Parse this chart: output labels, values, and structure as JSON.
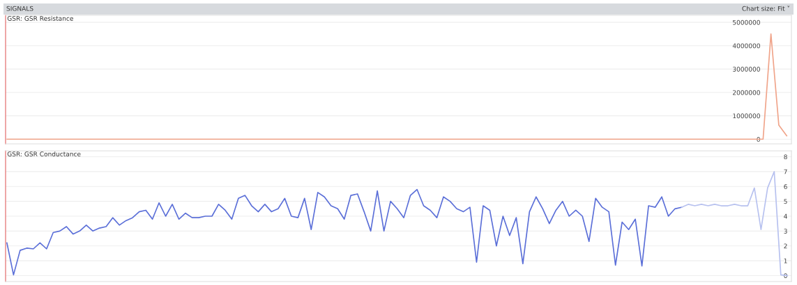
{
  "chart_data": [
    {
      "type": "line",
      "title": "GSR: GSR Resistance",
      "annotations": [
        "SIGNALS",
        "Chart size: Fit ˅"
      ],
      "categories": [
        null,
        null,
        null,
        null,
        null,
        null,
        null,
        null,
        null,
        null,
        null,
        null,
        null,
        null,
        null,
        null,
        null,
        null,
        null,
        null,
        null,
        null,
        null,
        null,
        null,
        null,
        null,
        null,
        null,
        null,
        null,
        null,
        null,
        null,
        null,
        null,
        null,
        null,
        null,
        null,
        null,
        null,
        null,
        null,
        null,
        null,
        null,
        null,
        null,
        null,
        null,
        null,
        null,
        null,
        null,
        null,
        null,
        null,
        null,
        null,
        null,
        null,
        null,
        null,
        null,
        null,
        null,
        null,
        null,
        null,
        null,
        null,
        null,
        null,
        null,
        null,
        null,
        null,
        null,
        null,
        null,
        null,
        null,
        null,
        null,
        null,
        null,
        null,
        null,
        null,
        null,
        null,
        null,
        null,
        null,
        null,
        null,
        null,
        null,
        null
      ],
      "series": [
        {
          "color": "#f0a48a",
          "values": [
            0,
            0,
            0,
            0,
            0,
            0,
            0,
            0,
            0,
            0,
            0,
            0,
            0,
            0,
            0,
            0,
            0,
            0,
            0,
            0,
            0,
            0,
            0,
            0,
            0,
            0,
            0,
            0,
            0,
            0,
            0,
            0,
            0,
            0,
            0,
            0,
            0,
            0,
            0,
            0,
            0,
            0,
            0,
            0,
            0,
            0,
            0,
            0,
            0,
            0,
            0,
            0,
            0,
            0,
            0,
            0,
            0,
            0,
            0,
            0,
            0,
            0,
            0,
            0,
            0,
            0,
            0,
            0,
            0,
            0,
            0,
            0,
            0,
            0,
            0,
            0,
            0,
            0,
            0,
            0,
            0,
            0,
            0,
            0,
            0,
            0,
            0,
            0,
            0,
            0,
            0,
            0,
            0,
            0,
            0,
            0,
            0,
            4500000,
            600000,
            150000
          ]
        }
      ],
      "ylim": [
        -200000,
        5300000
      ],
      "yticks": [
        0,
        1000000,
        2000000,
        3000000,
        4000000,
        5000000
      ],
      "grid": "y",
      "tick_labels": "y"
    },
    {
      "type": "line",
      "title": "GSR: GSR Conductance",
      "categories": [
        null,
        null,
        null,
        null,
        null,
        null,
        null,
        null,
        null,
        null,
        null,
        null,
        null,
        null,
        null,
        null,
        null,
        null,
        null,
        null,
        null,
        null,
        null,
        null,
        null,
        null,
        null,
        null,
        null,
        null,
        null,
        null,
        null,
        null,
        null,
        null,
        null,
        null,
        null,
        null,
        null,
        null,
        null,
        null,
        null,
        null,
        null,
        null,
        null,
        null,
        null,
        null,
        null,
        null,
        null,
        null,
        null,
        null,
        null,
        null,
        null,
        null,
        null,
        null,
        null,
        null,
        null,
        null,
        null,
        null,
        null,
        null,
        null,
        null,
        null,
        null,
        null,
        null,
        null,
        null,
        null,
        null,
        null,
        null,
        null,
        null,
        null,
        null,
        null,
        null,
        null,
        null,
        null,
        null,
        null,
        null,
        null,
        null,
        null,
        null,
        null,
        null,
        null,
        null,
        null,
        null,
        null,
        null,
        null,
        null,
        null,
        null,
        null,
        null,
        null,
        null,
        null,
        null,
        null
      ],
      "series": [
        {
          "color": "#5b6fd8",
          "values": [
            2.2,
            0.05,
            1.7,
            1.85,
            1.8,
            2.2,
            1.8,
            2.9,
            3.0,
            3.3,
            2.8,
            3.0,
            3.4,
            3.0,
            3.2,
            3.3,
            3.9,
            3.4,
            3.7,
            3.9,
            4.3,
            4.4,
            3.8,
            4.9,
            4.0,
            4.8,
            3.8,
            4.2,
            3.9,
            3.9,
            4.0,
            4.0,
            4.8,
            4.4,
            3.8,
            5.2,
            5.4,
            4.7,
            4.3,
            4.8,
            4.3,
            4.5,
            5.2,
            4.0,
            3.9,
            5.2,
            3.1,
            5.6,
            5.3,
            4.7,
            4.5,
            3.8,
            5.4,
            5.5,
            4.3,
            3.0,
            5.7,
            3.0,
            5.0,
            4.5,
            3.9,
            5.4,
            5.8,
            4.7,
            4.4,
            3.9,
            5.3,
            5.0,
            4.5,
            4.3,
            4.6,
            0.9,
            4.7,
            4.4,
            2.0,
            4.0,
            2.7,
            3.9,
            0.8,
            4.3,
            5.3,
            4.5,
            3.5,
            4.4,
            5.0,
            4.0,
            4.4,
            4.0,
            2.3,
            5.2,
            4.6,
            4.3,
            0.7,
            3.6,
            3.1,
            3.8,
            0.65,
            4.7,
            4.6,
            5.3,
            4.0,
            4.5,
            4.6,
            null,
            null,
            null,
            null,
            null,
            null,
            null,
            null,
            null,
            null,
            null,
            null,
            null,
            null,
            null,
            null
          ]
        },
        {
          "color": "#b7c1ef",
          "values": [
            null,
            null,
            null,
            null,
            null,
            null,
            null,
            null,
            null,
            null,
            null,
            null,
            null,
            null,
            null,
            null,
            null,
            null,
            null,
            null,
            null,
            null,
            null,
            null,
            null,
            null,
            null,
            null,
            null,
            null,
            null,
            null,
            null,
            null,
            null,
            null,
            null,
            null,
            null,
            null,
            null,
            null,
            null,
            null,
            null,
            null,
            null,
            null,
            null,
            null,
            null,
            null,
            null,
            null,
            null,
            null,
            null,
            null,
            null,
            null,
            null,
            null,
            null,
            null,
            null,
            null,
            null,
            null,
            null,
            null,
            null,
            null,
            null,
            null,
            null,
            null,
            null,
            null,
            null,
            null,
            null,
            null,
            null,
            null,
            null,
            null,
            null,
            null,
            null,
            null,
            null,
            null,
            null,
            null,
            null,
            null,
            null,
            null,
            null,
            null,
            null,
            null,
            4.6,
            4.8,
            4.7,
            4.8,
            4.7,
            4.8,
            4.7,
            4.7,
            4.8,
            4.7,
            4.7,
            5.9,
            3.1,
            5.9,
            7.0,
            0.05,
            0
          ]
        }
      ],
      "ylim": [
        -0.4,
        8.4
      ],
      "yticks": [
        0,
        1,
        2,
        3,
        4,
        5,
        6,
        7,
        8
      ],
      "grid": "y",
      "tick_labels": "y"
    }
  ]
}
